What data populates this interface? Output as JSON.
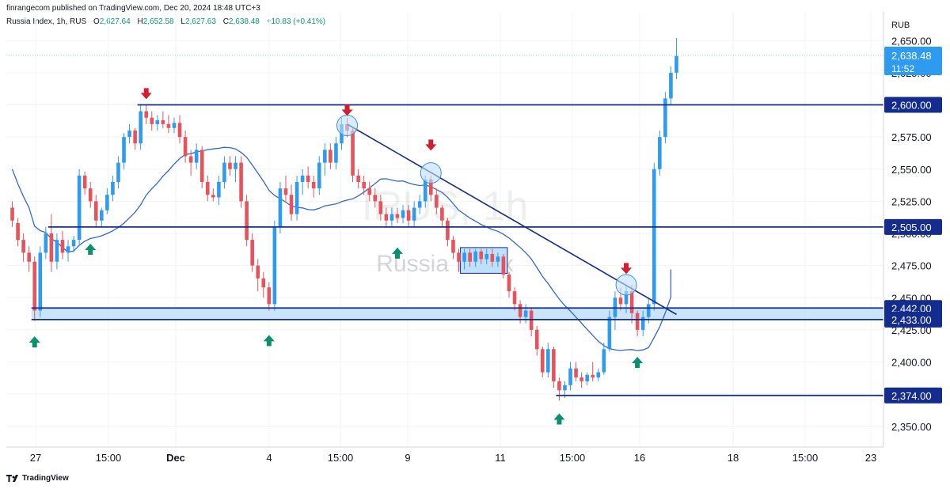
{
  "header": {
    "published": "finrangecom published on TradingView.com, Dec 20, 2024 18:48 UTC+3"
  },
  "symbol_info": {
    "name": "Russia Index, 1h, RUS",
    "open_label": "O",
    "open": "2,627.64",
    "high_label": "H",
    "high": "2,652.58",
    "low_label": "L",
    "low": "2,627.63",
    "close_label": "C",
    "close": "2,638.48",
    "change": "+10.83 (+0.41%)"
  },
  "currency": "RUB",
  "watermark": {
    "ticker": "IRUS, 1h",
    "name": "Russia Index"
  },
  "footer": {
    "brand": "TradingView"
  },
  "colors": {
    "up": "#2f9bf0",
    "down": "#e8525a",
    "level": "#142c8e",
    "ma": "#3366d6",
    "zone": "#bfe0fb",
    "buy_arrow": "#0a8f6f",
    "sell_arrow": "#d11f2f"
  },
  "chart_data": {
    "type": "candlestick",
    "timeframe": "1h",
    "y_axis": {
      "min": 2340,
      "max": 2660,
      "ticks": [
        "2,350.00",
        "2,375.00",
        "2,400.00",
        "2,425.00",
        "2,450.00",
        "2,475.00",
        "2,500.00",
        "2,525.00",
        "2,550.00",
        "2,575.00",
        "2,600.00",
        "2,625.00",
        "2,650.00"
      ]
    },
    "x_axis": {
      "labels": [
        "27",
        "15:00",
        "Dec",
        "4",
        "15:00",
        "9",
        "11",
        "15:00",
        "16",
        "18",
        "15:00",
        "23"
      ],
      "bars": 120
    },
    "price_labels": [
      {
        "text": "2,600.00",
        "value": 2600
      },
      {
        "text": "2,505.00",
        "value": 2505
      },
      {
        "text": "2,442.00",
        "value": 2442
      },
      {
        "text": "2,433.00",
        "value": 2433
      },
      {
        "text": "2,374.00",
        "value": 2374
      }
    ],
    "last_price": {
      "text": "2,638.48",
      "countdown": "11:52",
      "value": 2638.48
    },
    "horizontal_levels": [
      {
        "value": 2600,
        "from_bar": 23
      },
      {
        "value": 2505,
        "from_bar": 7
      },
      {
        "value": 2442,
        "from_bar": 4
      },
      {
        "value": 2433,
        "from_bar": 4
      },
      {
        "value": 2374,
        "from_bar": 98
      }
    ],
    "support_zone": {
      "from_bar": 4,
      "low": 2433,
      "high": 2442
    },
    "consolidation_box": {
      "from_bar": 81,
      "to_bar": 88,
      "low": 2469,
      "high": 2489
    },
    "trendline": {
      "from_bar": 60,
      "from_value": 2585,
      "to_bar": 119,
      "to_value": 2437
    },
    "ma_endpoint": {
      "bar": 118,
      "value": 2472
    },
    "circles": [
      {
        "bar": 60,
        "value": 2584
      },
      {
        "bar": 75,
        "value": 2547
      },
      {
        "bar": 110,
        "value": 2460
      }
    ],
    "down_arrows": [
      {
        "bar": 24,
        "value": 2605
      },
      {
        "bar": 60,
        "value": 2592
      },
      {
        "bar": 75,
        "value": 2565
      },
      {
        "bar": 110,
        "value": 2469
      }
    ],
    "up_arrows": [
      {
        "bar": 4,
        "value": 2420
      },
      {
        "bar": 14,
        "value": 2492
      },
      {
        "bar": 46,
        "value": 2421
      },
      {
        "bar": 69,
        "value": 2489
      },
      {
        "bar": 98,
        "value": 2360
      },
      {
        "bar": 112,
        "value": 2404
      }
    ],
    "candles": [
      [
        2520,
        2525,
        2505,
        2510
      ],
      [
        2508,
        2512,
        2490,
        2495
      ],
      [
        2495,
        2500,
        2478,
        2485
      ],
      [
        2485,
        2490,
        2470,
        2478
      ],
      [
        2478,
        2482,
        2432,
        2440
      ],
      [
        2440,
        2490,
        2435,
        2485
      ],
      [
        2485,
        2505,
        2480,
        2500
      ],
      [
        2500,
        2515,
        2470,
        2478
      ],
      [
        2478,
        2500,
        2472,
        2495
      ],
      [
        2495,
        2502,
        2480,
        2485
      ],
      [
        2485,
        2495,
        2478,
        2490
      ],
      [
        2490,
        2498,
        2485,
        2495
      ],
      [
        2495,
        2550,
        2490,
        2545
      ],
      [
        2545,
        2548,
        2530,
        2535
      ],
      [
        2535,
        2540,
        2520,
        2525
      ],
      [
        2525,
        2530,
        2505,
        2510
      ],
      [
        2510,
        2520,
        2505,
        2518
      ],
      [
        2518,
        2535,
        2515,
        2530
      ],
      [
        2530,
        2545,
        2525,
        2540
      ],
      [
        2540,
        2560,
        2535,
        2555
      ],
      [
        2555,
        2578,
        2550,
        2575
      ],
      [
        2575,
        2585,
        2570,
        2580
      ],
      [
        2580,
        2582,
        2565,
        2570
      ],
      [
        2570,
        2600,
        2565,
        2595
      ],
      [
        2595,
        2600,
        2585,
        2590
      ],
      [
        2590,
        2595,
        2580,
        2585
      ],
      [
        2585,
        2592,
        2580,
        2588
      ],
      [
        2588,
        2595,
        2582,
        2585
      ],
      [
        2585,
        2592,
        2578,
        2582
      ],
      [
        2582,
        2590,
        2578,
        2586
      ],
      [
        2586,
        2592,
        2570,
        2575
      ],
      [
        2575,
        2580,
        2555,
        2560
      ],
      [
        2560,
        2565,
        2545,
        2555
      ],
      [
        2555,
        2570,
        2550,
        2565
      ],
      [
        2565,
        2568,
        2535,
        2540
      ],
      [
        2540,
        2545,
        2525,
        2530
      ],
      [
        2530,
        2535,
        2525,
        2528
      ],
      [
        2528,
        2545,
        2522,
        2540
      ],
      [
        2540,
        2560,
        2535,
        2555
      ],
      [
        2555,
        2560,
        2545,
        2550
      ],
      [
        2550,
        2560,
        2540,
        2555
      ],
      [
        2555,
        2560,
        2520,
        2525
      ],
      [
        2525,
        2530,
        2490,
        2495
      ],
      [
        2495,
        2500,
        2470,
        2475
      ],
      [
        2475,
        2480,
        2455,
        2465
      ],
      [
        2465,
        2470,
        2450,
        2458
      ],
      [
        2458,
        2462,
        2440,
        2445
      ],
      [
        2445,
        2510,
        2440,
        2505
      ],
      [
        2505,
        2540,
        2500,
        2535
      ],
      [
        2535,
        2545,
        2525,
        2530
      ],
      [
        2530,
        2538,
        2510,
        2515
      ],
      [
        2515,
        2545,
        2510,
        2540
      ],
      [
        2540,
        2550,
        2530,
        2545
      ],
      [
        2545,
        2552,
        2535,
        2540
      ],
      [
        2540,
        2545,
        2528,
        2535
      ],
      [
        2535,
        2560,
        2530,
        2555
      ],
      [
        2555,
        2570,
        2545,
        2565
      ],
      [
        2565,
        2570,
        2550,
        2555
      ],
      [
        2555,
        2575,
        2550,
        2570
      ],
      [
        2570,
        2590,
        2565,
        2585
      ],
      [
        2585,
        2590,
        2575,
        2580
      ],
      [
        2580,
        2582,
        2540,
        2545
      ],
      [
        2545,
        2550,
        2535,
        2540
      ],
      [
        2540,
        2545,
        2530,
        2535
      ],
      [
        2535,
        2540,
        2525,
        2530
      ],
      [
        2530,
        2535,
        2520,
        2525
      ],
      [
        2525,
        2530,
        2510,
        2515
      ],
      [
        2515,
        2520,
        2505,
        2510
      ],
      [
        2510,
        2520,
        2505,
        2515
      ],
      [
        2515,
        2520,
        2508,
        2512
      ],
      [
        2512,
        2522,
        2508,
        2518
      ],
      [
        2518,
        2522,
        2505,
        2510
      ],
      [
        2510,
        2525,
        2505,
        2520
      ],
      [
        2520,
        2530,
        2515,
        2525
      ],
      [
        2525,
        2545,
        2520,
        2542
      ],
      [
        2542,
        2545,
        2525,
        2530
      ],
      [
        2530,
        2535,
        2515,
        2520
      ],
      [
        2520,
        2522,
        2505,
        2510
      ],
      [
        2510,
        2512,
        2490,
        2495
      ],
      [
        2495,
        2498,
        2480,
        2485
      ],
      [
        2485,
        2488,
        2470,
        2478
      ],
      [
        2478,
        2488,
        2472,
        2485
      ],
      [
        2485,
        2488,
        2474,
        2478
      ],
      [
        2478,
        2488,
        2474,
        2486
      ],
      [
        2486,
        2488,
        2476,
        2480
      ],
      [
        2480,
        2488,
        2476,
        2484
      ],
      [
        2484,
        2488,
        2474,
        2478
      ],
      [
        2478,
        2485,
        2474,
        2482
      ],
      [
        2482,
        2484,
        2465,
        2468
      ],
      [
        2468,
        2470,
        2450,
        2455
      ],
      [
        2455,
        2458,
        2440,
        2445
      ],
      [
        2445,
        2448,
        2430,
        2435
      ],
      [
        2435,
        2445,
        2430,
        2440
      ],
      [
        2440,
        2442,
        2420,
        2425
      ],
      [
        2425,
        2428,
        2405,
        2410
      ],
      [
        2410,
        2412,
        2388,
        2392
      ],
      [
        2392,
        2415,
        2388,
        2410
      ],
      [
        2410,
        2412,
        2380,
        2385
      ],
      [
        2385,
        2388,
        2370,
        2378
      ],
      [
        2378,
        2385,
        2372,
        2382
      ],
      [
        2382,
        2400,
        2378,
        2395
      ],
      [
        2395,
        2400,
        2385,
        2388
      ],
      [
        2388,
        2392,
        2380,
        2385
      ],
      [
        2385,
        2392,
        2382,
        2390
      ],
      [
        2390,
        2400,
        2385,
        2388
      ],
      [
        2388,
        2395,
        2385,
        2392
      ],
      [
        2392,
        2415,
        2390,
        2410
      ],
      [
        2410,
        2440,
        2408,
        2435
      ],
      [
        2435,
        2455,
        2425,
        2450
      ],
      [
        2450,
        2458,
        2440,
        2445
      ],
      [
        2445,
        2460,
        2438,
        2455
      ],
      [
        2455,
        2460,
        2430,
        2438
      ],
      [
        2438,
        2440,
        2420,
        2425
      ],
      [
        2425,
        2440,
        2420,
        2435
      ],
      [
        2435,
        2450,
        2430,
        2445
      ],
      [
        2445,
        2555,
        2440,
        2550
      ],
      [
        2550,
        2580,
        2545,
        2575
      ],
      [
        2575,
        2610,
        2570,
        2605
      ],
      [
        2605,
        2630,
        2600,
        2625
      ],
      [
        2625,
        2652,
        2620,
        2638
      ]
    ]
  }
}
